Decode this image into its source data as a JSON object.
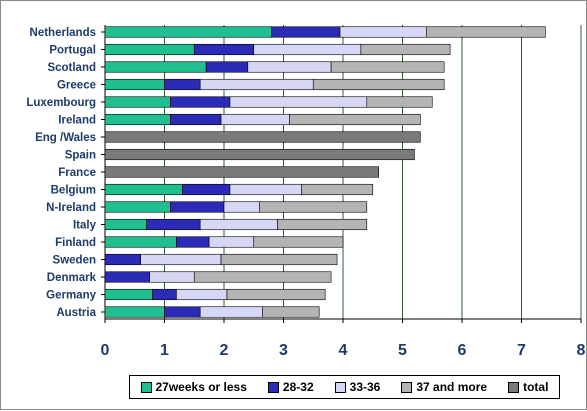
{
  "chart_data": {
    "type": "bar",
    "orientation": "horizontal",
    "stacked": true,
    "categories": [
      "Netherlands",
      "Portugal",
      "Scotland",
      "Greece",
      "Luxembourg",
      "Ireland",
      "Eng /Wales",
      "Spain",
      "France",
      "Belgium",
      "N-Ireland",
      "Italy",
      "Finland",
      "Sweden",
      "Denmark",
      "Germany",
      "Austria"
    ],
    "series": [
      {
        "name": "27weeks or less",
        "color": "#1fbf8f",
        "values": [
          2.8,
          1.5,
          1.7,
          1.0,
          1.1,
          1.1,
          null,
          null,
          null,
          1.3,
          1.1,
          0.7,
          1.2,
          0.0,
          0.0,
          0.8,
          1.0
        ]
      },
      {
        "name": "28-32",
        "color": "#2b2bb8",
        "values": [
          1.15,
          1.0,
          0.7,
          0.6,
          1.0,
          0.85,
          null,
          null,
          null,
          0.8,
          0.9,
          0.9,
          0.55,
          0.6,
          0.75,
          0.4,
          0.6
        ]
      },
      {
        "name": "33-36",
        "color": "#d6d6f5",
        "values": [
          1.45,
          1.8,
          1.4,
          1.9,
          2.3,
          1.15,
          null,
          null,
          null,
          1.2,
          0.6,
          1.3,
          0.75,
          1.35,
          0.75,
          0.85,
          1.05
        ]
      },
      {
        "name": "37 and more",
        "color": "#b4b4b4",
        "values": [
          2.0,
          1.5,
          1.9,
          2.2,
          1.1,
          2.2,
          null,
          null,
          null,
          1.2,
          1.8,
          1.5,
          1.5,
          1.95,
          2.3,
          1.65,
          0.95
        ]
      },
      {
        "name": "total",
        "color": "#7a7a7a",
        "values": [
          null,
          null,
          null,
          null,
          null,
          null,
          5.3,
          5.2,
          4.6,
          null,
          null,
          null,
          null,
          null,
          null,
          null,
          null
        ]
      }
    ],
    "xlim": [
      0,
      8
    ],
    "xticks": [
      "0",
      "1",
      "2",
      "3",
      "4",
      "5",
      "6",
      "7",
      "8"
    ],
    "grid": "vertical",
    "legend_position": "bottom"
  }
}
